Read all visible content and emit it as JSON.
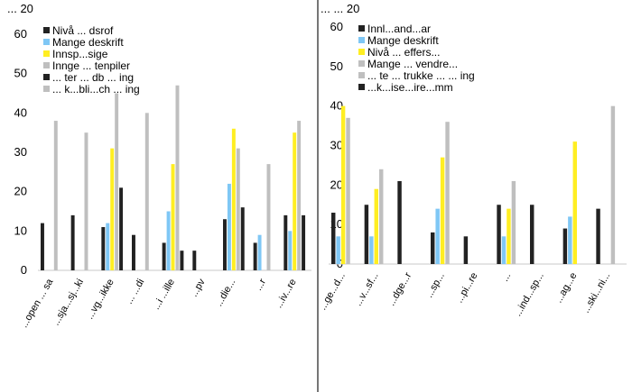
{
  "colors": {
    "dark": "#222222",
    "blue": "#7fc7f5",
    "yellow": "#ffee22",
    "grey": "#bfbfbf",
    "gridline": "#c8c8c8",
    "divider": "#1a1a1a"
  },
  "chart_data": [
    {
      "type": "bar",
      "title": "",
      "corner_label": "... 20",
      "xlabel": "",
      "ylabel": "",
      "ylim": [
        0,
        60
      ],
      "yticks": [
        0,
        10,
        20,
        30,
        40,
        50,
        60
      ],
      "ytick_labels": [
        "0",
        "10",
        "20",
        "30",
        "40",
        "50",
        "60"
      ],
      "grid": false,
      "legend": "top-left",
      "categories": [
        "...open ... sa",
        "...sja...sj...ki",
        "...vg...ikke",
        "... ...di",
        "...i ...ille",
        "...pv",
        "...die...",
        "...r",
        "...iv...re"
      ],
      "series": [
        {
          "name": "Nivå ... dsrof",
          "color": "dark",
          "values": [
            12,
            14,
            11,
            9,
            7,
            5,
            13,
            7,
            14
          ]
        },
        {
          "name": "Mange deskrift",
          "color": "blue",
          "values": [
            0,
            0,
            12,
            0,
            15,
            0,
            22,
            9,
            10
          ]
        },
        {
          "name": "Innsp...sige",
          "color": "yellow",
          "values": [
            0,
            0,
            31,
            0,
            27,
            0,
            36,
            0,
            35
          ]
        },
        {
          "name": "Innge ... tenpiler",
          "color": "grey",
          "values": [
            38,
            35,
            45,
            40,
            47,
            0,
            31,
            27,
            38
          ]
        },
        {
          "name": "... ter ... db ... ing",
          "color": "dark",
          "values": [
            0,
            0,
            21,
            0,
            5,
            0,
            16,
            0,
            14
          ]
        },
        {
          "name": "... k...bli...ch ... ing",
          "color": "grey",
          "values": [
            0,
            0,
            0,
            0,
            0,
            0,
            0,
            0,
            0
          ]
        }
      ]
    },
    {
      "type": "bar",
      "title": "",
      "corner_label": "... ... 20",
      "xlabel": "",
      "ylabel": "",
      "ylim": [
        0,
        60
      ],
      "yticks": [
        0,
        10,
        20,
        30,
        40,
        50,
        60
      ],
      "ytick_labels": [
        "0",
        "10",
        "20",
        "30",
        "40",
        "50",
        "60"
      ],
      "grid": false,
      "legend": "top-left",
      "categories": [
        "...ge...d...",
        "...v...sf...",
        "...dge...r",
        "...sp...",
        "...pi...re",
        "...",
        "...ind...sp...",
        "...ag...e",
        "...ski...ni..."
      ],
      "series": [
        {
          "name": "Innl...and...ar",
          "color": "dark",
          "values": [
            13,
            15,
            21,
            8,
            7,
            15,
            15,
            9,
            14
          ]
        },
        {
          "name": "Mange deskrift",
          "color": "blue",
          "values": [
            7,
            7,
            0,
            14,
            0,
            7,
            0,
            12,
            0
          ]
        },
        {
          "name": "Nivå ... effers...",
          "color": "yellow",
          "values": [
            40,
            19,
            0,
            27,
            0,
            14,
            0,
            31,
            0
          ]
        },
        {
          "name": "Mange ... vendre...",
          "color": "grey",
          "values": [
            37,
            24,
            0,
            36,
            0,
            21,
            0,
            0,
            40
          ]
        },
        {
          "name": "... te ... trukke ... ... ing",
          "color": "grey",
          "values": [
            0,
            0,
            0,
            0,
            0,
            0,
            0,
            0,
            0
          ]
        },
        {
          "name": "...k...ise...ire...mm",
          "color": "dark",
          "values": [
            0,
            0,
            0,
            0,
            0,
            0,
            0,
            0,
            0
          ]
        }
      ]
    }
  ]
}
